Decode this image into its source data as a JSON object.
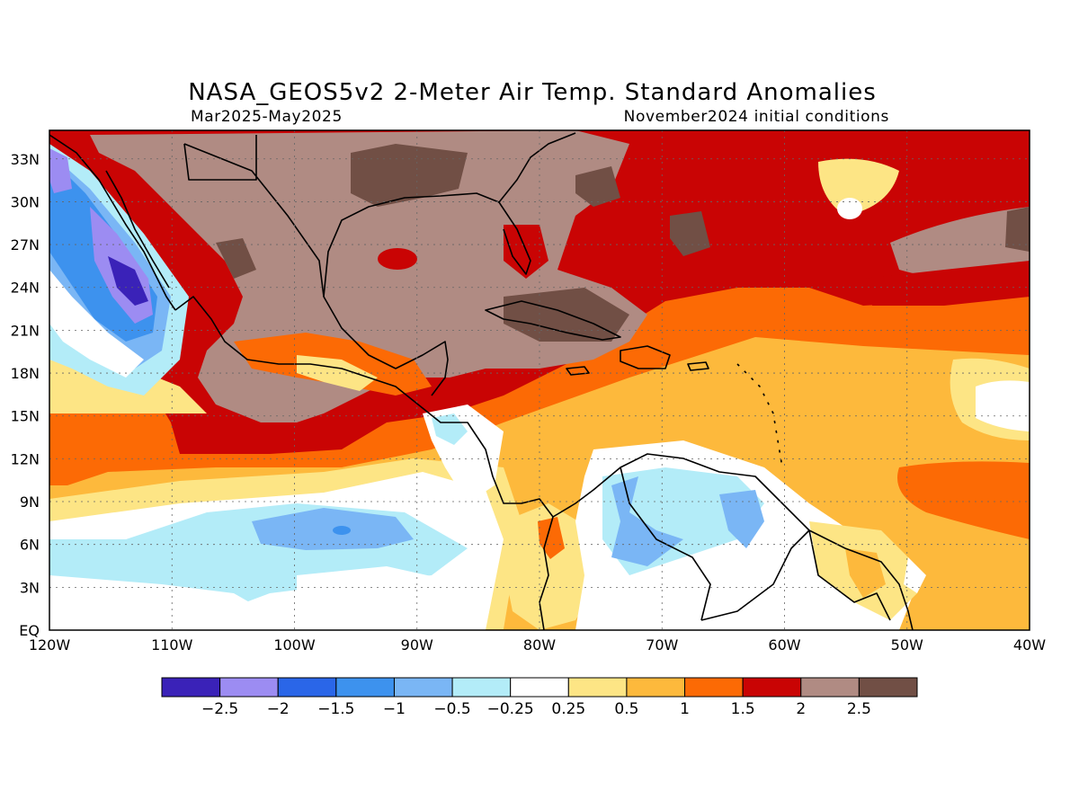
{
  "title": "NASA_GEOS5v2 2-Meter Air Temp. Standard Anomalies",
  "subtitle_left": "Mar2025-May2025",
  "subtitle_right": "November2024 initial conditions",
  "axes": {
    "lon_ticks": [
      "120W",
      "110W",
      "100W",
      "90W",
      "80W",
      "70W",
      "60W",
      "50W",
      "40W"
    ],
    "lat_ticks": [
      "33N",
      "30N",
      "27N",
      "24N",
      "21N",
      "18N",
      "15N",
      "12N",
      "9N",
      "6N",
      "3N",
      "EQ"
    ],
    "lon_range": [
      -120,
      -40
    ],
    "lat_range": [
      0,
      35
    ],
    "grid": true
  },
  "colorbar": {
    "labels": [
      "-2.5",
      "-2",
      "-1.5",
      "-1",
      "-0.5",
      "-0.25",
      "0.25",
      "0.5",
      "1",
      "1.5",
      "2",
      "2.5"
    ],
    "colors": [
      "#3a22b8",
      "#9c8cf2",
      "#2a66e8",
      "#3d92ee",
      "#7ab6f5",
      "#b3ecf8",
      "#ffffff",
      "#fde585",
      "#fdb93c",
      "#fc6a05",
      "#c90404",
      "#b08b83",
      "#714f45"
    ]
  },
  "chart_data": {
    "type": "heatmap",
    "variable": "2-Meter Air Temp. Standard Anomalies",
    "period": "Mar2025-May2025",
    "initial_conditions": "November2024",
    "xlim": [
      -120,
      -40
    ],
    "ylim": [
      0,
      35
    ],
    "levels": [
      -2.5,
      -2,
      -1.5,
      -1,
      -0.5,
      -0.25,
      0.25,
      0.5,
      1,
      1.5,
      2,
      2.5
    ]
  }
}
